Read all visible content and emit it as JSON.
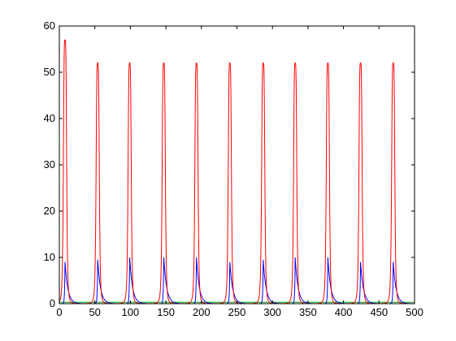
{
  "chart_data": {
    "type": "line",
    "title": "",
    "xlabel": "",
    "ylabel": "",
    "xlim": [
      0,
      500
    ],
    "ylim": [
      0,
      60
    ],
    "grid": false,
    "legend": "none",
    "x_ticks": [
      0,
      50,
      100,
      150,
      200,
      250,
      300,
      350,
      400,
      450,
      500
    ],
    "y_ticks": [
      0,
      10,
      20,
      30,
      40,
      50,
      60
    ],
    "peak_x": [
      8,
      54,
      99,
      147,
      193,
      240,
      287,
      332,
      378,
      424,
      470
    ],
    "series": [
      {
        "color": "#ff0000",
        "peaks": [
          57,
          52,
          52,
          52,
          52,
          52,
          52,
          52,
          52,
          52,
          52
        ],
        "half_width": 2.4
      },
      {
        "color": "#0000ff",
        "peaks": [
          9,
          9.5,
          10,
          10,
          10,
          9,
          9.5,
          10,
          10,
          9,
          9
        ],
        "decay": 4.0
      },
      {
        "color": "#00aa00",
        "baseline": 0.3
      }
    ]
  }
}
